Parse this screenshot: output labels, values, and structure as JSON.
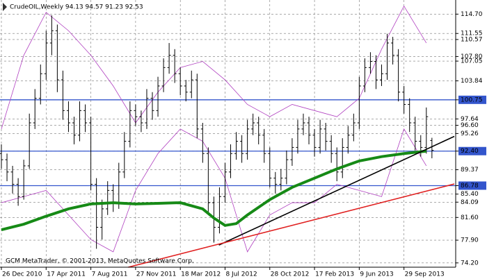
{
  "chart_data": {
    "type": "ohlc",
    "title": "CrudeOIL,Weekly  94.13 94.57 91.23 92.53",
    "footer": "GCM MetaTrader, © 2001-2013, MetaQuotes Software Corp.",
    "open": [
      92,
      91,
      89,
      87,
      85,
      90,
      97,
      101,
      105,
      110,
      112,
      104,
      99,
      97,
      95,
      99,
      97,
      87,
      80,
      83,
      86,
      84,
      89,
      94,
      99,
      98,
      97,
      101,
      99,
      103,
      106,
      108,
      105,
      103,
      102,
      104,
      96,
      92,
      84,
      80,
      85,
      89,
      92,
      94,
      92,
      96,
      97,
      95,
      92,
      88,
      87,
      88,
      91,
      93,
      96,
      97,
      95,
      93,
      96,
      94,
      92,
      89,
      93,
      95,
      97,
      103,
      106,
      107,
      104,
      105,
      110,
      108,
      102,
      100,
      97,
      94,
      93,
      94.13
    ],
    "high": [
      93.5,
      92,
      90,
      88,
      91,
      98.5,
      102.5,
      106.5,
      112,
      114.5,
      113,
      105.5,
      100.5,
      98,
      100.5,
      100,
      98,
      88,
      84.5,
      87.5,
      87,
      90.5,
      95.5,
      100.5,
      100,
      99,
      102.5,
      102,
      104.5,
      107.5,
      110,
      109,
      106,
      104,
      105.5,
      105,
      97,
      93,
      85,
      86.5,
      90.5,
      93.5,
      95.5,
      95,
      97.5,
      98.5,
      98,
      96,
      93,
      89,
      89.5,
      92.5,
      94.5,
      97.5,
      98.5,
      98,
      96,
      97.5,
      97,
      95,
      93,
      94.5,
      96.5,
      98.5,
      104.5,
      107.5,
      108.5,
      108,
      106.5,
      111.5,
      111,
      109,
      103,
      101,
      98,
      95,
      99.5,
      94.57
    ],
    "low": [
      89.5,
      87.5,
      85.5,
      83.5,
      84.5,
      89.5,
      96,
      100,
      104,
      108,
      102,
      97.5,
      95.5,
      93.5,
      94,
      95.5,
      86,
      76.5,
      78,
      82,
      82.5,
      83,
      88,
      93,
      96.5,
      95.5,
      96,
      97.5,
      98,
      102,
      105,
      103.5,
      101.5,
      100.5,
      101,
      94.5,
      90.5,
      82.5,
      77.5,
      79,
      84,
      88,
      91,
      90.5,
      91,
      95,
      93.5,
      90.5,
      86.5,
      85.5,
      86,
      87,
      90,
      92,
      95,
      93.5,
      91.5,
      92,
      92.5,
      90.5,
      87.5,
      88,
      92,
      94,
      96,
      102,
      105,
      102.5,
      103,
      104,
      106.5,
      100.5,
      98.5,
      95.5,
      92.5,
      91.5,
      92,
      91.23
    ],
    "close": [
      91,
      89,
      87,
      85,
      90,
      97,
      101,
      105,
      110,
      112,
      104,
      99,
      97,
      95,
      99,
      97,
      87,
      80,
      83,
      86,
      84,
      89,
      94,
      99,
      98,
      97,
      101,
      99,
      103,
      106,
      108,
      105,
      103,
      102,
      104,
      96,
      92,
      84,
      80,
      85,
      89,
      92,
      94,
      92,
      96,
      97,
      95,
      92,
      88,
      87,
      88,
      91,
      93,
      96,
      97,
      95,
      93,
      96,
      94,
      92,
      89,
      93,
      95,
      97,
      103,
      106,
      107,
      104,
      105,
      110,
      108,
      102,
      100,
      97,
      94,
      93,
      98,
      92.53
    ],
    "bar_color": "#000000",
    "ma": {
      "color": "#168a16",
      "x": [
        0,
        4,
        8,
        12,
        16,
        20,
        24,
        28,
        32,
        36,
        38,
        40,
        42,
        44,
        48,
        52,
        56,
        60,
        64,
        68,
        72,
        76
      ],
      "values": [
        79.6,
        80.5,
        81.8,
        83,
        83.8,
        84,
        83.8,
        83.9,
        84,
        83,
        81.5,
        80.3,
        80.6,
        82,
        84.5,
        86.5,
        88,
        89.5,
        90.8,
        91.5,
        92,
        92.4
      ]
    },
    "bands": {
      "color": "#b040c0",
      "x": [
        0,
        4,
        8,
        12,
        16,
        20,
        24,
        28,
        32,
        36,
        40,
        44,
        48,
        52,
        56,
        60,
        64,
        68,
        72,
        76
      ],
      "upper": [
        96,
        108,
        115,
        112,
        108,
        103,
        97,
        102,
        106,
        107,
        104,
        100,
        98,
        100,
        99,
        98,
        101,
        109,
        116,
        110
      ],
      "lower": [
        84,
        85,
        86,
        82,
        78,
        76,
        86,
        92,
        96,
        94,
        88,
        76,
        82,
        84,
        84,
        87,
        86,
        85,
        96,
        90
      ]
    },
    "hlines": {
      "color": "#3355cc",
      "values": [
        100.75,
        92.4,
        86.78
      ]
    },
    "trendlines": [
      {
        "color": "#000000",
        "x": [
          38.9,
          81
        ],
        "y": [
          77.1,
          94.8
        ]
      },
      {
        "color": "#e02020",
        "x": [
          22.7,
          81
        ],
        "y": [
          73.5,
          87.05
        ]
      }
    ],
    "xlim": [
      -0.25,
      81.25
    ],
    "ylim": [
      73.5,
      117
    ],
    "xticks": [
      {
        "value": 0,
        "label": "26 Dec 2010"
      },
      {
        "value": 8,
        "label": "17 Apr 2011"
      },
      {
        "value": 16,
        "label": "7 Aug 2011"
      },
      {
        "value": 24,
        "label": "27 Nov 2011"
      },
      {
        "value": 32,
        "label": "18 Mar 2012"
      },
      {
        "value": 40,
        "label": "8 Jul 2012"
      },
      {
        "value": 48,
        "label": "28 Oct 2012"
      },
      {
        "value": 56,
        "label": "17 Feb 2013"
      },
      {
        "value": 64,
        "label": "9 Jun 2013"
      },
      {
        "value": 72,
        "label": "29 Sep 2013"
      }
    ],
    "yticks": [
      {
        "value": 114.7,
        "label": "114.70"
      },
      {
        "value": 111.55,
        "label": "111.55"
      },
      {
        "value": 110.57,
        "label": "110.57"
      },
      {
        "value": 107.8,
        "label": "107.80"
      },
      {
        "value": 107.05,
        "label": "107.05"
      },
      {
        "value": 103.84,
        "label": "103.84"
      },
      {
        "value": 100.75,
        "label": "100.75"
      },
      {
        "value": 97.64,
        "label": "97.64"
      },
      {
        "value": 96.6,
        "label": "96.60"
      },
      {
        "value": 95.26,
        "label": "95.26"
      },
      {
        "value": 92.4,
        "label": "92.40"
      },
      {
        "value": 89.37,
        "label": "89.37"
      },
      {
        "value": 86.78,
        "label": "86.78"
      },
      {
        "value": 85.4,
        "label": "85.40"
      },
      {
        "value": 84.09,
        "label": "84.09"
      },
      {
        "value": 81.6,
        "label": "81.60"
      },
      {
        "value": 77.9,
        "label": "77.90"
      },
      {
        "value": 74.2,
        "label": "74.20"
      }
    ],
    "grid": true
  }
}
